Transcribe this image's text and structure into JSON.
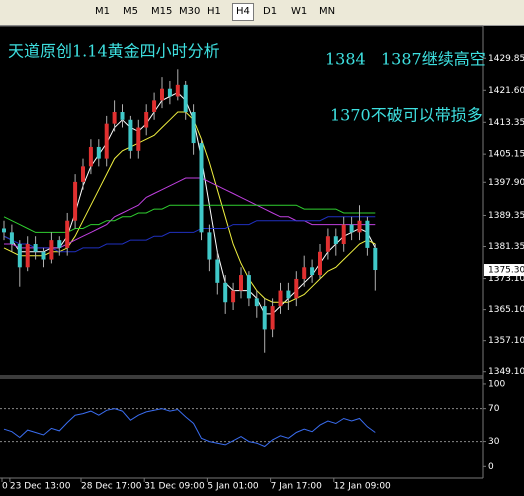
{
  "toolbar": {
    "timeframes": [
      "M1",
      "M5",
      "M15",
      "M30",
      "H1",
      "H4",
      "D1",
      "W1",
      "MN"
    ],
    "active": "H4"
  },
  "chart_data": [
    {
      "type": "candlestick",
      "annotations": [
        "天道原创1.14黄金四小时分析",
        "1384   1387继续高空",
        "1370不破可以带损多"
      ],
      "categories": [
        "0",
        "23 Dec 13:00",
        null,
        null,
        null,
        null,
        null,
        null,
        null,
        null,
        "28 Dec 17:00",
        null,
        null,
        null,
        null,
        null,
        null,
        null,
        "31 Dec 09:00",
        null,
        null,
        null,
        null,
        null,
        null,
        null,
        "5 Jan 01:00",
        null,
        null,
        null,
        null,
        null,
        null,
        null,
        "7 Jan 17:00",
        null,
        null,
        null,
        null,
        null,
        null,
        null,
        "12 Jan 09:00",
        null,
        null,
        null,
        null,
        null
      ],
      "open": [
        1386,
        1385,
        1382,
        1376,
        1382,
        1380,
        1378,
        1383,
        1381,
        1388,
        1398,
        1402,
        1407,
        1404,
        1413,
        1416,
        1414,
        1406,
        1412,
        1416,
        1419,
        1422,
        1420,
        1423,
        1416,
        1408,
        1385,
        1378,
        1372,
        1367,
        1370,
        1374,
        1368,
        1366,
        1360,
        1366,
        1370,
        1368,
        1373,
        1376,
        1374,
        1380,
        1384,
        1382,
        1387,
        1385,
        1388,
        1381
      ],
      "high": [
        1388,
        1387,
        1383,
        1384,
        1384,
        1381,
        1385,
        1384,
        1390,
        1400,
        1404,
        1409,
        1409,
        1415,
        1419,
        1418,
        1415,
        1414,
        1418,
        1421,
        1425,
        1424,
        1427,
        1424,
        1418,
        1409,
        1387,
        1380,
        1374,
        1372,
        1376,
        1375,
        1370,
        1368,
        1368,
        1372,
        1372,
        1375,
        1379,
        1378,
        1382,
        1386,
        1386,
        1389,
        1389,
        1392,
        1389,
        1382
      ],
      "low": [
        1383,
        1380,
        1371,
        1375,
        1378,
        1376,
        1377,
        1379,
        1379,
        1386,
        1396,
        1400,
        1402,
        1402,
        1411,
        1412,
        1404,
        1404,
        1410,
        1414,
        1417,
        1418,
        1419,
        1414,
        1405,
        1383,
        1375,
        1369,
        1364,
        1365,
        1368,
        1366,
        1363,
        1354,
        1358,
        1364,
        1365,
        1366,
        1371,
        1372,
        1373,
        1378,
        1379,
        1380,
        1383,
        1383,
        1379,
        1370
      ],
      "close": [
        1385,
        1382,
        1376,
        1382,
        1380,
        1378,
        1383,
        1381,
        1388,
        1398,
        1402,
        1407,
        1404,
        1413,
        1416,
        1414,
        1406,
        1412,
        1416,
        1419,
        1422,
        1420,
        1423,
        1416,
        1408,
        1385,
        1378,
        1372,
        1367,
        1370,
        1374,
        1368,
        1366,
        1360,
        1366,
        1370,
        1368,
        1373,
        1376,
        1374,
        1380,
        1384,
        1382,
        1387,
        1385,
        1388,
        1381,
        1375.3
      ],
      "up_color": "#e03030",
      "down_color": "#40c8c8",
      "wick_color": "#b0b0b0",
      "series": [
        {
          "color": "#ffffff",
          "values": [
            1384,
            1383,
            1380,
            1380,
            1380,
            1380,
            1381,
            1381,
            1384,
            1390,
            1397,
            1402,
            1405,
            1408,
            1412,
            1414,
            1412,
            1411,
            1413,
            1416,
            1419,
            1420,
            1421,
            1419,
            1414,
            1404,
            1392,
            1380,
            1372,
            1370,
            1370,
            1370,
            1368,
            1364,
            1364,
            1366,
            1368,
            1370,
            1372,
            1374,
            1377,
            1380,
            1382,
            1384,
            1385,
            1386,
            1385,
            1381
          ]
        },
        {
          "color": "#f0f040",
          "values": [
            1381,
            1380,
            1379,
            1379,
            1379,
            1379,
            1380,
            1380,
            1381,
            1384,
            1388,
            1392,
            1396,
            1400,
            1404,
            1406,
            1407,
            1408,
            1409,
            1410,
            1412,
            1414,
            1416,
            1416,
            1414,
            1409,
            1403,
            1396,
            1389,
            1382,
            1377,
            1373,
            1370,
            1368,
            1367,
            1367,
            1367,
            1368,
            1369,
            1371,
            1373,
            1375,
            1376,
            1378,
            1380,
            1382,
            1383,
            1382
          ]
        },
        {
          "color": "#c040e0",
          "values": [
            1382,
            1382,
            1381,
            1381,
            1381,
            1381,
            1381,
            1381,
            1382,
            1383,
            1384,
            1385,
            1386,
            1387,
            1389,
            1390,
            1391,
            1392,
            1394,
            1395,
            1396,
            1397,
            1398,
            1399,
            1399,
            1399,
            1398,
            1397,
            1396,
            1395,
            1394,
            1393,
            1392,
            1391,
            1390,
            1389,
            1389,
            1388,
            1388,
            1387,
            1387,
            1387,
            1387,
            1387,
            1387,
            1387,
            1387,
            1387
          ]
        },
        {
          "color": "#30d030",
          "values": [
            1389,
            1388,
            1387,
            1386,
            1385,
            1385,
            1385,
            1385,
            1385,
            1386,
            1386,
            1387,
            1387,
            1388,
            1388,
            1389,
            1389,
            1390,
            1390,
            1391,
            1391,
            1392,
            1392,
            1392,
            1392,
            1392,
            1392,
            1392,
            1392,
            1392,
            1392,
            1392,
            1392,
            1392,
            1392,
            1392,
            1392,
            1392,
            1391,
            1391,
            1391,
            1391,
            1391,
            1390,
            1390,
            1390,
            1390,
            1390
          ]
        },
        {
          "color": "#2030c0",
          "values": [
            1384,
            1383,
            1382,
            1382,
            1381,
            1381,
            1381,
            1380,
            1380,
            1380,
            1381,
            1381,
            1381,
            1382,
            1382,
            1382,
            1383,
            1383,
            1383,
            1384,
            1384,
            1385,
            1385,
            1385,
            1385,
            1386,
            1386,
            1386,
            1386,
            1387,
            1387,
            1387,
            1388,
            1388,
            1388,
            1388,
            1388,
            1388,
            1388,
            1388,
            1388,
            1389,
            1389,
            1389,
            1389,
            1389,
            1389,
            1389
          ]
        }
      ],
      "last_price": {
        "value": 1375.3,
        "label": "1375.30"
      },
      "ylim": [
        1348,
        1437.9
      ],
      "yticks": [
        1429.85,
        {
          "value": 1421.6,
          "label": "1421.60"
        },
        1413.35,
        1405.15,
        {
          "value": 1397.9,
          "label": "1397.90"
        },
        1389.35,
        1381.35,
        {
          "value": 1373.1,
          "label": "1373.10"
        },
        {
          "value": 1365.1,
          "label": "1365.10"
        },
        {
          "value": 1357.1,
          "label": "1357.10"
        },
        {
          "value": 1349.1,
          "label": "1349.10"
        }
      ]
    },
    {
      "type": "line",
      "series": [
        {
          "color": "#3a6df0",
          "values": [
            45,
            42,
            35,
            44,
            41,
            38,
            46,
            43,
            53,
            62,
            64,
            67,
            62,
            68,
            70,
            67,
            56,
            62,
            66,
            68,
            70,
            67,
            69,
            60,
            52,
            34,
            30,
            28,
            26,
            31,
            36,
            30,
            28,
            24,
            32,
            37,
            34,
            41,
            45,
            42,
            50,
            55,
            52,
            58,
            55,
            58,
            48,
            41
          ]
        }
      ],
      "levels": [
        30,
        70
      ],
      "ylim": [
        -13,
        106
      ],
      "yticks": [
        0,
        30,
        70,
        100
      ]
    }
  ]
}
